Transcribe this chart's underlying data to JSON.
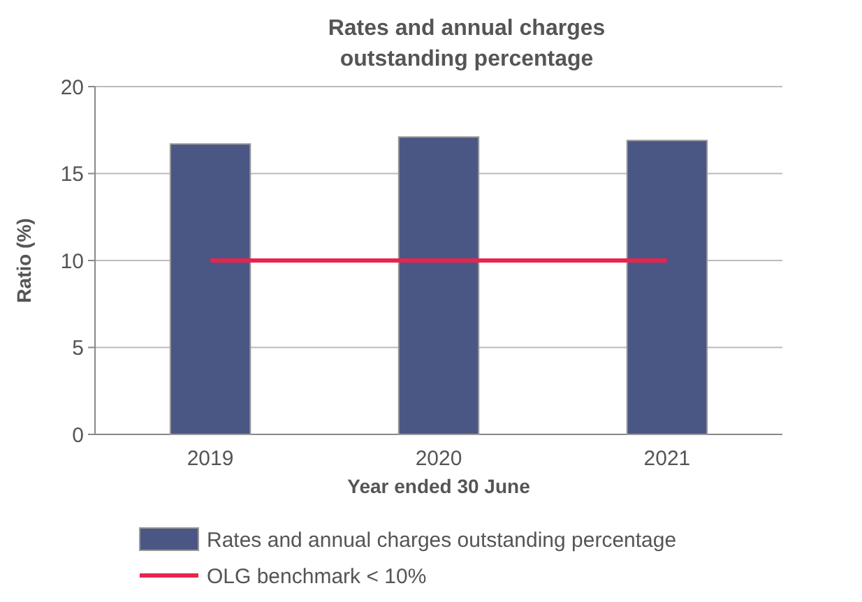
{
  "chart_data": {
    "type": "bar",
    "title": "Rates and annual charges outstanding percentage",
    "xlabel": "Year ended 30 June",
    "ylabel": "Ratio (%)",
    "categories": [
      "2019",
      "2020",
      "2021"
    ],
    "series": [
      {
        "name": "Rates and annual charges outstanding percentage",
        "color": "#4a5785",
        "values": [
          16.7,
          17.1,
          16.9
        ]
      },
      {
        "name": "OLG benchmark < 10%",
        "type": "line",
        "color": "#e8244f",
        "values": [
          10,
          10,
          10
        ]
      }
    ],
    "ylim": [
      0,
      20
    ],
    "yticks": [
      0,
      5,
      10,
      15,
      20
    ],
    "grid": "y",
    "legend": "bottom"
  }
}
